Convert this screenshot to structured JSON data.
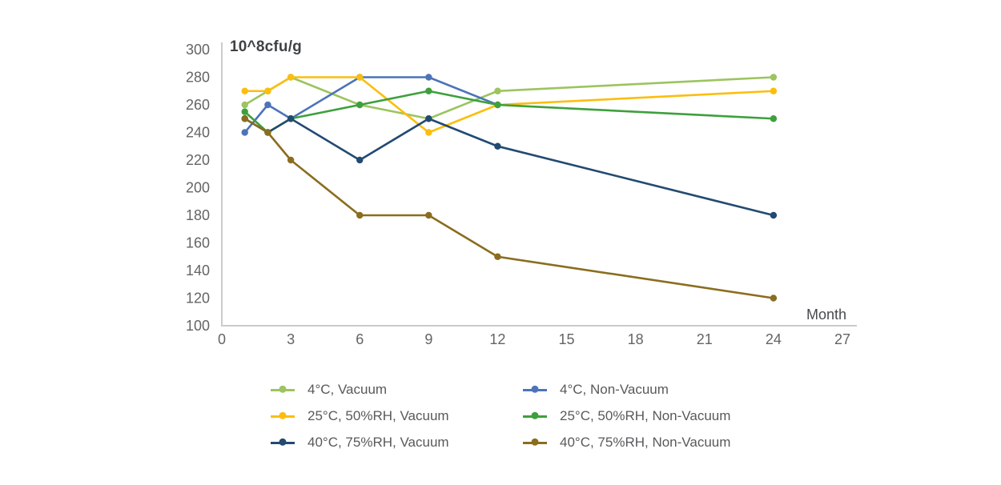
{
  "chart_data": {
    "type": "line",
    "title": "",
    "y_label": "10^8cfu/g",
    "x_label": "Month",
    "x": [
      1,
      2,
      3,
      6,
      9,
      12,
      24
    ],
    "xlim": [
      0,
      27.6
    ],
    "ylim": [
      100,
      300
    ],
    "x_ticks": [
      0,
      3,
      6,
      9,
      12,
      15,
      18,
      21,
      24,
      27
    ],
    "y_ticks": [
      100,
      120,
      140,
      160,
      180,
      200,
      220,
      240,
      260,
      280,
      300
    ],
    "grid": false,
    "legend_position": "bottom",
    "legend_columns": 2,
    "series": [
      {
        "name": "4°C, Vacuum",
        "color": "#9CC45F",
        "values": [
          260,
          270,
          280,
          260,
          250,
          270,
          280
        ]
      },
      {
        "name": "4°C, Non-Vacuum",
        "color": "#4C74B8",
        "values": [
          240,
          260,
          250,
          280,
          280,
          260,
          null
        ]
      },
      {
        "name": "25°C, 50%RH, Vacuum",
        "color": "#FBBE0F",
        "values": [
          270,
          270,
          280,
          280,
          240,
          260,
          270
        ]
      },
      {
        "name": "25°C, 50%RH, Non-Vacuum",
        "color": "#3EA03C",
        "values": [
          255,
          240,
          250,
          260,
          270,
          260,
          250
        ]
      },
      {
        "name": "40°C, 75%RH, Vacuum",
        "color": "#224A72",
        "values": [
          250,
          240,
          250,
          220,
          250,
          230,
          180
        ]
      },
      {
        "name": "40°C, 75%RH, Non-Vacuum",
        "color": "#8A6D1E",
        "values": [
          250,
          240,
          220,
          180,
          180,
          150,
          120
        ]
      }
    ],
    "style_colors": {
      "axis_line": "#CBCBCB",
      "tick_text": "#646464",
      "y_title_text": "#3F4245",
      "x_title_text": "#474B4E",
      "legend_text": "#58595B",
      "background": "#FFFFFF"
    }
  }
}
